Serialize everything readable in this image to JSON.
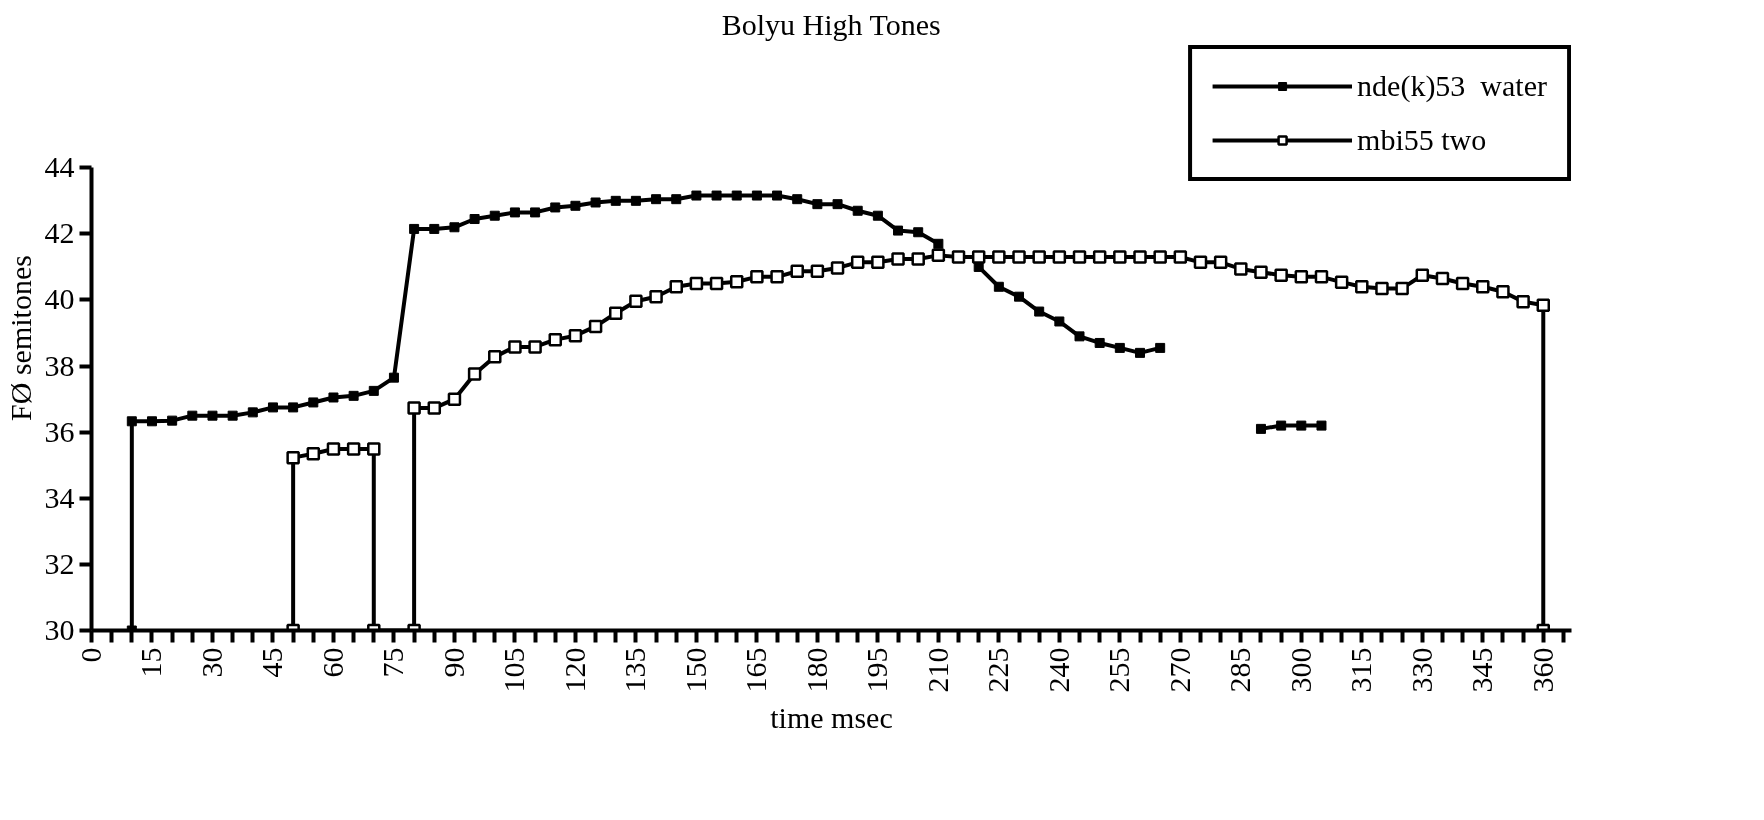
{
  "chart_data": {
    "type": "line",
    "title": "Bolyu High Tones",
    "xlabel": "time msec",
    "ylabel": "FØ semitones",
    "xlim": [
      0,
      367
    ],
    "ylim": [
      30,
      44
    ],
    "xticks": [
      0,
      {
        "value": 5,
        "label": null
      },
      {
        "value": 10,
        "label": null
      },
      15,
      {
        "value": 20,
        "label": null
      },
      {
        "value": 25,
        "label": null
      },
      30,
      {
        "value": 35,
        "label": null
      },
      {
        "value": 40,
        "label": null
      },
      45,
      {
        "value": 50,
        "label": null
      },
      {
        "value": 55,
        "label": null
      },
      60,
      {
        "value": 65,
        "label": null
      },
      {
        "value": 70,
        "label": null
      },
      75,
      {
        "value": 80,
        "label": null
      },
      {
        "value": 85,
        "label": null
      },
      90,
      {
        "value": 95,
        "label": null
      },
      {
        "value": 100,
        "label": null
      },
      105,
      {
        "value": 110,
        "label": null
      },
      {
        "value": 115,
        "label": null
      },
      120,
      {
        "value": 125,
        "label": null
      },
      {
        "value": 130,
        "label": null
      },
      135,
      {
        "value": 140,
        "label": null
      },
      {
        "value": 145,
        "label": null
      },
      150,
      {
        "value": 155,
        "label": null
      },
      {
        "value": 160,
        "label": null
      },
      165,
      {
        "value": 170,
        "label": null
      },
      {
        "value": 175,
        "label": null
      },
      180,
      {
        "value": 185,
        "label": null
      },
      {
        "value": 190,
        "label": null
      },
      195,
      {
        "value": 200,
        "label": null
      },
      {
        "value": 205,
        "label": null
      },
      210,
      {
        "value": 215,
        "label": null
      },
      {
        "value": 220,
        "label": null
      },
      225,
      {
        "value": 230,
        "label": null
      },
      {
        "value": 235,
        "label": null
      },
      240,
      {
        "value": 245,
        "label": null
      },
      {
        "value": 250,
        "label": null
      },
      255,
      {
        "value": 260,
        "label": null
      },
      {
        "value": 265,
        "label": null
      },
      270,
      {
        "value": 275,
        "label": null
      },
      {
        "value": 280,
        "label": null
      },
      285,
      {
        "value": 290,
        "label": null
      },
      {
        "value": 295,
        "label": null
      },
      300,
      {
        "value": 305,
        "label": null
      },
      {
        "value": 310,
        "label": null
      },
      315,
      {
        "value": 320,
        "label": null
      },
      {
        "value": 325,
        "label": null
      },
      330,
      {
        "value": 335,
        "label": null
      },
      {
        "value": 340,
        "label": null
      },
      345,
      {
        "value": 350,
        "label": null
      },
      {
        "value": 355,
        "label": null
      },
      360,
      {
        "value": 365,
        "label": null
      }
    ],
    "yticks": [
      30,
      32,
      34,
      36,
      38,
      40,
      42,
      44
    ],
    "grid": false,
    "legend": "top right",
    "marker": "square",
    "line_style": "solid",
    "series": [
      {
        "name": "nde(k)53  water",
        "color": "#000000",
        "x": [
          10,
          10,
          15,
          20,
          25,
          30,
          35,
          40,
          45,
          50,
          55,
          60,
          65,
          70,
          75,
          80,
          85,
          90,
          95,
          100,
          105,
          110,
          115,
          120,
          125,
          130,
          135,
          140,
          145,
          150,
          155,
          160,
          165,
          170,
          175,
          180,
          185,
          190,
          195,
          200,
          205,
          210,
          215,
          220,
          225,
          230,
          235,
          240,
          245,
          250,
          255,
          260,
          265,
          270,
          275,
          280,
          285,
          290,
          295,
          300,
          305
        ],
        "values": [
          30,
          36.33,
          36.33,
          36.35,
          36.5,
          36.5,
          36.5,
          36.6,
          36.75,
          36.75,
          36.9,
          37.05,
          37.1,
          37.25,
          37.65,
          42.15,
          42.15,
          42.2,
          42.45,
          42.55,
          42.65,
          42.65,
          42.8,
          42.85,
          42.95,
          43.0,
          43.0,
          43.05,
          43.05,
          43.16,
          43.16,
          43.16,
          43.16,
          43.16,
          43.05,
          42.9,
          42.9,
          42.7,
          42.55,
          42.1,
          42.05,
          41.7,
          null,
          41.0,
          40.4,
          40.1,
          39.65,
          39.35,
          38.9,
          38.7,
          38.55,
          38.4,
          38.55,
          null,
          null,
          null,
          null,
          36.1,
          36.2,
          36.2,
          36.2
        ]
      },
      {
        "name": "mbi55 two",
        "color": "#000000",
        "x": [
          50,
          50,
          55,
          60,
          65,
          70,
          70,
          80,
          80,
          85,
          90,
          95,
          100,
          105,
          110,
          115,
          120,
          125,
          130,
          135,
          140,
          145,
          150,
          155,
          160,
          165,
          170,
          175,
          180,
          185,
          190,
          195,
          200,
          205,
          210,
          215,
          220,
          225,
          230,
          235,
          240,
          245,
          250,
          255,
          260,
          265,
          270,
          275,
          280,
          285,
          290,
          295,
          300,
          305,
          310,
          315,
          320,
          325,
          330,
          335,
          340,
          345,
          350,
          355,
          360,
          360
        ],
        "values": [
          30,
          35.23,
          35.35,
          35.49,
          35.49,
          35.49,
          30,
          30,
          36.73,
          36.73,
          37.0,
          37.76,
          38.28,
          38.58,
          38.58,
          38.8,
          38.92,
          39.2,
          39.6,
          39.96,
          40.1,
          40.4,
          40.5,
          40.5,
          40.55,
          40.7,
          40.7,
          40.87,
          40.87,
          40.97,
          41.14,
          41.14,
          41.24,
          41.24,
          41.35,
          41.3,
          41.3,
          41.3,
          41.3,
          41.3,
          41.3,
          41.3,
          41.3,
          41.3,
          41.3,
          41.3,
          41.3,
          41.14,
          41.14,
          40.94,
          40.84,
          40.75,
          40.7,
          40.7,
          40.54,
          40.4,
          40.35,
          40.35,
          40.75,
          40.65,
          40.5,
          40.4,
          40.25,
          39.95,
          39.84,
          30
        ]
      }
    ]
  }
}
